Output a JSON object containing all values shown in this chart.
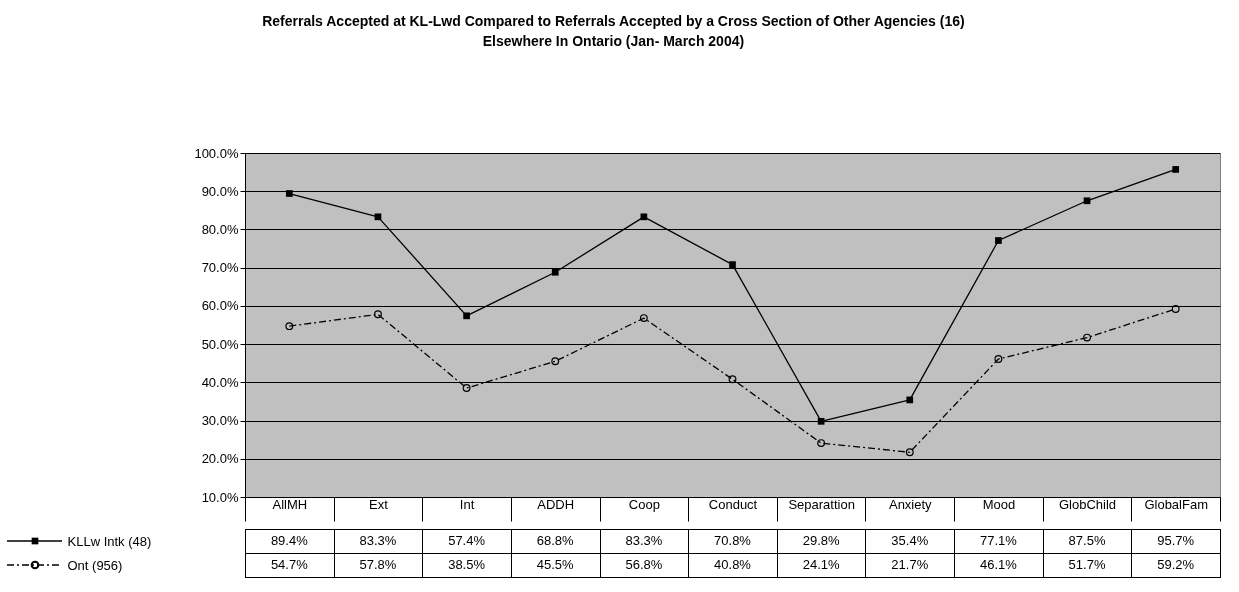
{
  "chart_data": {
    "type": "line",
    "title": "Referrals Accepted at KL-Lwd Compared to Referrals Accepted by a Cross Section of Other Agencies (16)\nElsewhere In Ontario (Jan- March 2004)",
    "categories": [
      "AllMH",
      "Ext",
      "Int",
      "ADDH",
      "Coop",
      "Conduct",
      "Separattion",
      "Anxiety",
      "Mood",
      "GlobChild",
      "GlobalFam"
    ],
    "series": [
      {
        "name": "KLLw Intk (48)",
        "color": "#000000",
        "marker": "square",
        "line_style": "solid",
        "values": [
          89.4,
          83.3,
          57.4,
          68.8,
          83.3,
          70.8,
          29.8,
          35.4,
          77.1,
          87.5,
          95.7
        ],
        "value_labels": [
          "89.4%",
          "83.3%",
          "57.4%",
          "68.8%",
          "83.3%",
          "70.8%",
          "29.8%",
          "35.4%",
          "77.1%",
          "87.5%",
          "95.7%"
        ]
      },
      {
        "name": "Ont (956)",
        "color": "#000000",
        "marker": "circle",
        "line_style": "dashed",
        "values": [
          54.7,
          57.8,
          38.5,
          45.5,
          56.8,
          40.8,
          24.1,
          21.7,
          46.1,
          51.7,
          59.2
        ],
        "value_labels": [
          "54.7%",
          "57.8%",
          "38.5%",
          "45.5%",
          "56.8%",
          "40.8%",
          "24.1%",
          "21.7%",
          "46.1%",
          "51.7%",
          "59.2%"
        ]
      }
    ],
    "ylim": [
      10,
      100
    ],
    "yticks": [
      {
        "value": 10,
        "label": "10.0%"
      },
      {
        "value": 20,
        "label": "20.0%"
      },
      {
        "value": 30,
        "label": "30.0%"
      },
      {
        "value": 40,
        "label": "40.0%"
      },
      {
        "value": 50,
        "label": "50.0%"
      },
      {
        "value": 60,
        "label": "60.0%"
      },
      {
        "value": 70,
        "label": "70.0%"
      },
      {
        "value": 80,
        "label": "80.0%"
      },
      {
        "value": 90,
        "label": "90.0%"
      },
      {
        "value": 100,
        "label": "100.0%"
      }
    ],
    "grid": "y",
    "legend": "bottom left"
  }
}
